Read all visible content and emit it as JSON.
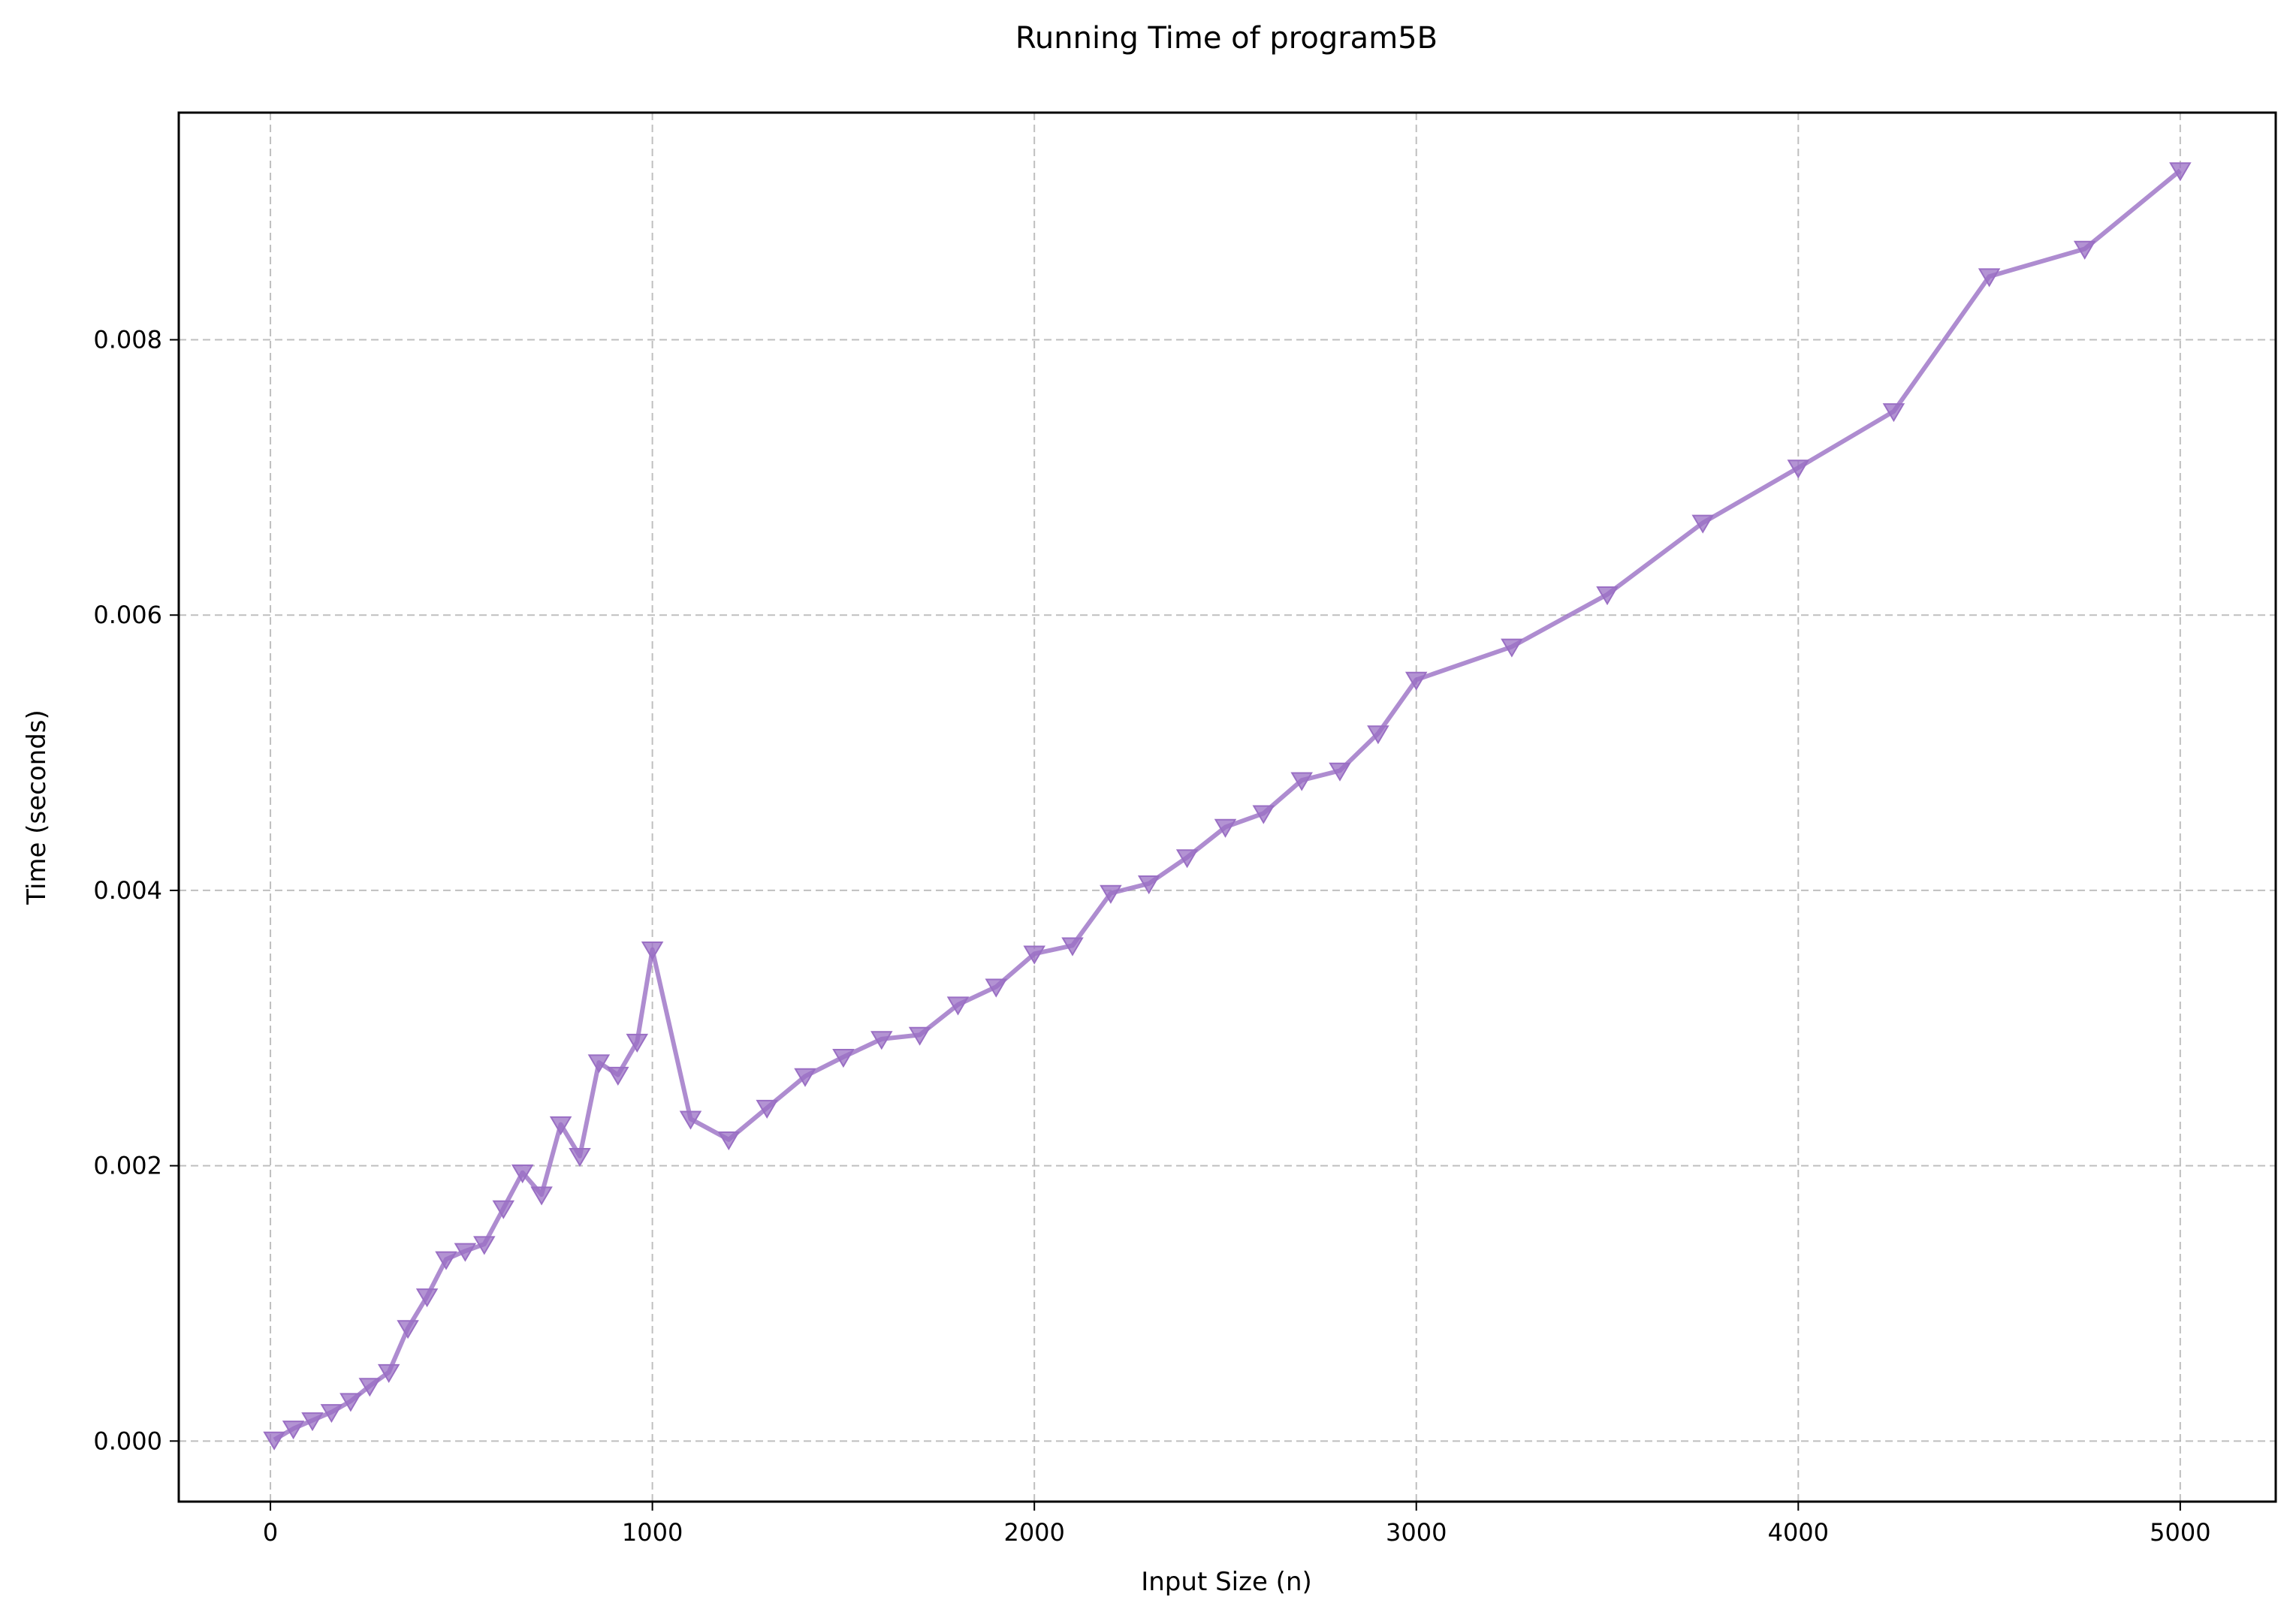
{
  "chart_data": {
    "type": "line",
    "title": "Running Time of program5B",
    "xlabel": "Input Size (n)",
    "ylabel": "Time (seconds)",
    "xlim": [
      -240,
      5250
    ],
    "ylim": [
      -0.00044,
      0.00965
    ],
    "xticks": [
      0,
      1000,
      2000,
      3000,
      4000,
      5000
    ],
    "xtick_labels": [
      "0",
      "1000",
      "2000",
      "3000",
      "4000",
      "5000"
    ],
    "yticks": [
      0.0,
      0.002,
      0.004,
      0.006,
      0.008
    ],
    "ytick_labels": [
      "0.000",
      "0.002",
      "0.004",
      "0.006",
      "0.008"
    ],
    "grid": true,
    "marker": "triangle-down",
    "line_color": "#9a6fc4",
    "marker_color": "#9a6fc4",
    "series": [
      {
        "x": [
          10,
          60,
          110,
          160,
          210,
          260,
          310,
          360,
          410,
          460,
          510,
          560,
          610,
          660,
          710,
          760,
          810,
          860,
          910,
          960,
          1000,
          1100,
          1200,
          1300,
          1400,
          1500,
          1600,
          1700,
          1800,
          1900,
          2000,
          2100,
          2200,
          2300,
          2400,
          2500,
          2600,
          2700,
          2800,
          2900,
          3000,
          3250,
          3500,
          3750,
          4000,
          4250,
          4500,
          4750,
          5000
        ],
        "values": [
          1e-05,
          9e-05,
          0.00015,
          0.00021,
          0.00029,
          0.0004,
          0.0005,
          0.00082,
          0.00105,
          0.00132,
          0.00138,
          0.00143,
          0.00169,
          0.00195,
          0.00179,
          0.0023,
          0.00207,
          0.00275,
          0.00266,
          0.0029,
          0.00357,
          0.00234,
          0.00219,
          0.00242,
          0.00265,
          0.00279,
          0.00292,
          0.00295,
          0.00317,
          0.0033,
          0.00354,
          0.0036,
          0.00398,
          0.00405,
          0.00424,
          0.00446,
          0.00456,
          0.0048,
          0.00487,
          0.00514,
          0.00553,
          0.00577,
          0.00615,
          0.00667,
          0.00707,
          0.00748,
          0.00846,
          0.00866,
          0.00923
        ]
      }
    ]
  }
}
